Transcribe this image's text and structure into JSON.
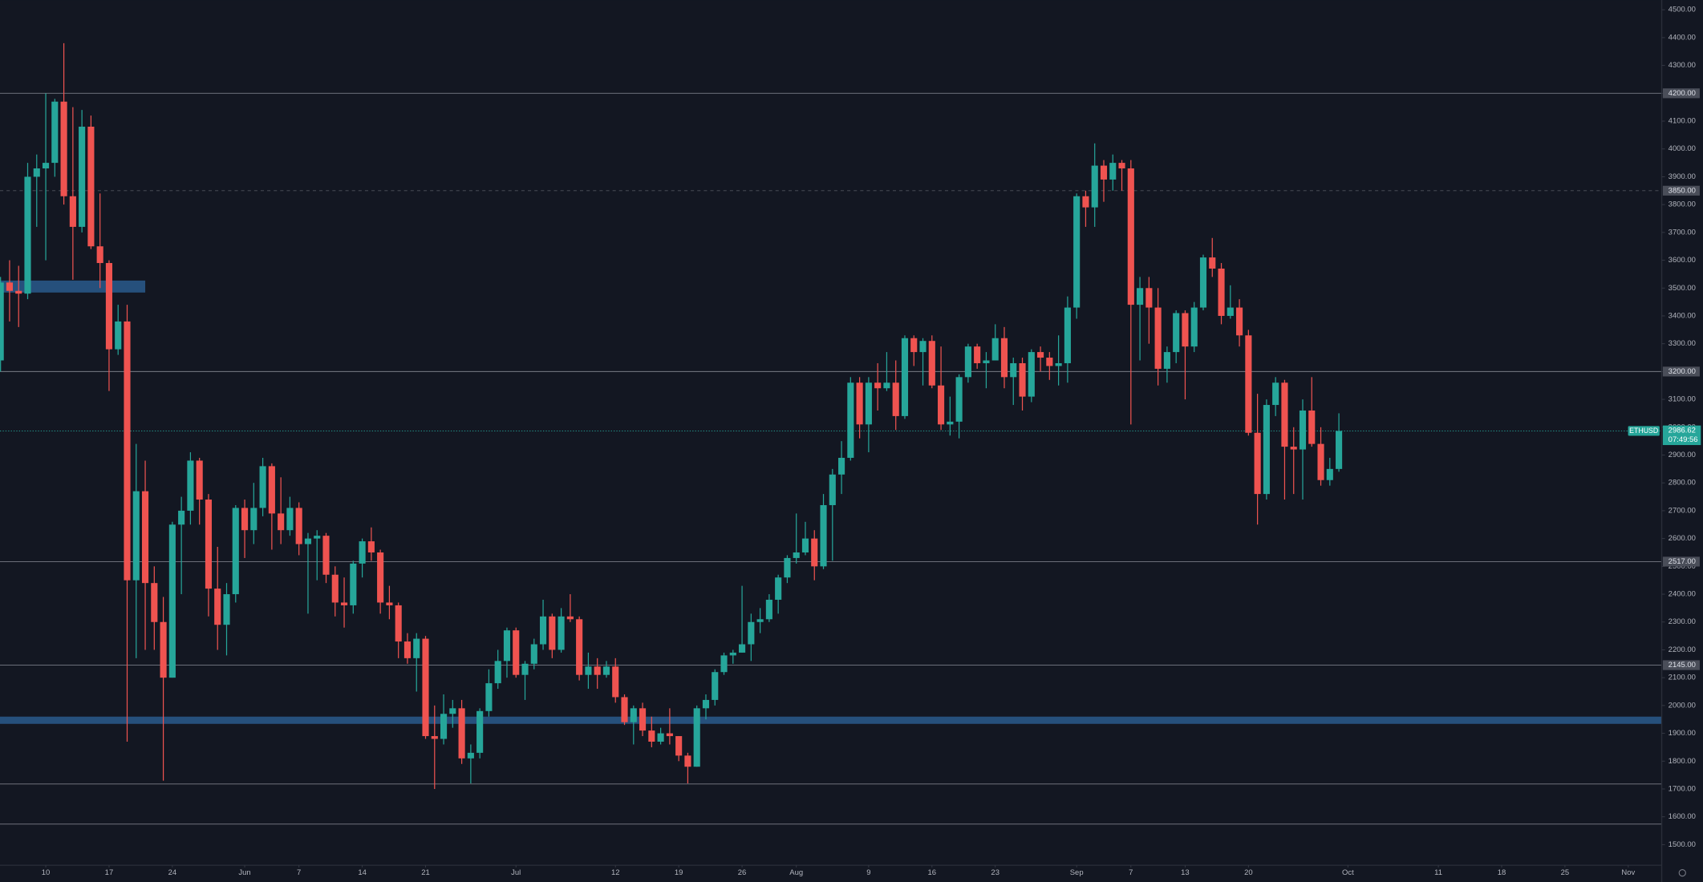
{
  "chart_data": {
    "type": "candlestick",
    "series_name": "ETHUSD",
    "countdown": "07:49:56",
    "up_color": "#26a69a",
    "down_color": "#ef5350",
    "x": [
      "May 5",
      "May 6",
      "May 7",
      "May 8",
      "May 9",
      "May 10",
      "May 11",
      "May 12",
      "May 13",
      "May 14",
      "May 15",
      "May 16",
      "May 17",
      "May 18",
      "May 19",
      "May 20",
      "May 21",
      "May 22",
      "May 23",
      "May 24",
      "May 25",
      "May 26",
      "May 27",
      "May 28",
      "May 29",
      "May 30",
      "May 31",
      "Jun 1",
      "Jun 2",
      "Jun 3",
      "Jun 4",
      "Jun 5",
      "Jun 6",
      "Jun 7",
      "Jun 8",
      "Jun 9",
      "Jun 10",
      "Jun 11",
      "Jun 12",
      "Jun 13",
      "Jun 14",
      "Jun 15",
      "Jun 16",
      "Jun 17",
      "Jun 18",
      "Jun 19",
      "Jun 20",
      "Jun 21",
      "Jun 22",
      "Jun 23",
      "Jun 24",
      "Jun 25",
      "Jun 26",
      "Jun 27",
      "Jun 28",
      "Jun 29",
      "Jun 30",
      "Jul 1",
      "Jul 2",
      "Jul 3",
      "Jul 4",
      "Jul 5",
      "Jul 6",
      "Jul 7",
      "Jul 8",
      "Jul 9",
      "Jul 10",
      "Jul 11",
      "Jul 12",
      "Jul 13",
      "Jul 14",
      "Jul 15",
      "Jul 16",
      "Jul 17",
      "Jul 18",
      "Jul 19",
      "Jul 20",
      "Jul 21",
      "Jul 22",
      "Jul 23",
      "Jul 24",
      "Jul 25",
      "Jul 26",
      "Jul 27",
      "Jul 28",
      "Jul 29",
      "Jul 30",
      "Jul 31",
      "Aug 1",
      "Aug 2",
      "Aug 3",
      "Aug 4",
      "Aug 5",
      "Aug 6",
      "Aug 7",
      "Aug 8",
      "Aug 9",
      "Aug 10",
      "Aug 11",
      "Aug 12",
      "Aug 13",
      "Aug 14",
      "Aug 15",
      "Aug 16",
      "Aug 17",
      "Aug 18",
      "Aug 19",
      "Aug 20",
      "Aug 21",
      "Aug 22",
      "Aug 23",
      "Aug 24",
      "Aug 25",
      "Aug 26",
      "Aug 27",
      "Aug 28",
      "Aug 29",
      "Aug 30",
      "Aug 31",
      "Sep 1",
      "Sep 2",
      "Sep 3",
      "Sep 4",
      "Sep 5",
      "Sep 6",
      "Sep 7",
      "Sep 8",
      "Sep 9",
      "Sep 10",
      "Sep 11",
      "Sep 12",
      "Sep 13",
      "Sep 14",
      "Sep 15",
      "Sep 16",
      "Sep 17",
      "Sep 18",
      "Sep 19",
      "Sep 20",
      "Sep 21",
      "Sep 22",
      "Sep 23",
      "Sep 24",
      "Sep 25",
      "Sep 26",
      "Sep 27",
      "Sep 28",
      "Sep 29",
      "Sep 30"
    ],
    "open": [
      3240,
      3520,
      3490,
      3480,
      3900,
      3930,
      3950,
      4170,
      3830,
      3720,
      4080,
      3650,
      3590,
      3280,
      3380,
      2450,
      2770,
      2440,
      2300,
      2100,
      2650,
      2700,
      2880,
      2740,
      2420,
      2290,
      2400,
      2710,
      2630,
      2710,
      2860,
      2690,
      2630,
      2710,
      2580,
      2600,
      2610,
      2470,
      2370,
      2360,
      2510,
      2590,
      2550,
      2370,
      2360,
      2230,
      2170,
      2240,
      1890,
      1880,
      1970,
      1990,
      1810,
      1830,
      1980,
      2080,
      2160,
      2270,
      2110,
      2150,
      2220,
      2320,
      2200,
      2320,
      2310,
      2110,
      2140,
      2110,
      2140,
      2030,
      1940,
      1990,
      1910,
      1870,
      1900,
      1890,
      1820,
      1780,
      1990,
      2020,
      2120,
      2180,
      2190,
      2220,
      2300,
      2310,
      2380,
      2460,
      2530,
      2550,
      2600,
      2500,
      2720,
      2830,
      2890,
      3160,
      3010,
      3160,
      3140,
      3160,
      3040,
      3320,
      3270,
      3310,
      3150,
      3010,
      3020,
      3180,
      3290,
      3230,
      3240,
      3320,
      3180,
      3230,
      3110,
      3270,
      3250,
      3220,
      3230,
      3430,
      3830,
      3790,
      3940,
      3890,
      3950,
      3930,
      3440,
      3500,
      3430,
      3210,
      3270,
      3410,
      3290,
      3430,
      3610,
      3570,
      3400,
      3430,
      3330,
      2980,
      2760,
      3080,
      3160,
      2930,
      2920,
      3060,
      2940,
      2810,
      2850
    ],
    "high": [
      3540,
      3600,
      3580,
      3950,
      3980,
      4200,
      4180,
      4380,
      4150,
      4140,
      4120,
      3840,
      3600,
      3440,
      3440,
      2940,
      2880,
      2500,
      2390,
      2660,
      2750,
      2910,
      2890,
      2760,
      2570,
      2440,
      2720,
      2740,
      2800,
      2890,
      2870,
      2820,
      2750,
      2730,
      2620,
      2630,
      2620,
      2500,
      2460,
      2520,
      2600,
      2640,
      2560,
      2430,
      2370,
      2260,
      2260,
      2250,
      2000,
      2040,
      2020,
      2020,
      1860,
      1990,
      2130,
      2200,
      2280,
      2280,
      2160,
      2240,
      2380,
      2330,
      2350,
      2400,
      2320,
      2190,
      2170,
      2160,
      2170,
      2040,
      2000,
      2010,
      1960,
      1920,
      1990,
      1890,
      1830,
      2000,
      2040,
      2130,
      2190,
      2200,
      2430,
      2330,
      2350,
      2400,
      2470,
      2540,
      2690,
      2660,
      2630,
      2760,
      2850,
      2950,
      3180,
      3180,
      3180,
      3230,
      3270,
      3240,
      3330,
      3330,
      3320,
      3330,
      3290,
      3110,
      3190,
      3300,
      3300,
      3270,
      3370,
      3360,
      3250,
      3250,
      3280,
      3290,
      3270,
      3330,
      3470,
      3840,
      3850,
      4020,
      3960,
      3980,
      3960,
      3960,
      3540,
      3540,
      3500,
      3290,
      3420,
      3420,
      3450,
      3620,
      3680,
      3590,
      3510,
      3460,
      3350,
      3120,
      3100,
      3180,
      3170,
      3000,
      3100,
      3180,
      3000,
      2890,
      3050
    ],
    "low": [
      3200,
      3380,
      3360,
      3460,
      3720,
      3600,
      3900,
      3800,
      3530,
      3700,
      3640,
      3500,
      3130,
      3260,
      1870,
      2170,
      2200,
      2200,
      1730,
      2100,
      2400,
      2650,
      2650,
      2320,
      2200,
      2180,
      2370,
      2530,
      2580,
      2680,
      2560,
      2580,
      2610,
      2540,
      2330,
      2450,
      2440,
      2320,
      2280,
      2330,
      2460,
      2520,
      2330,
      2310,
      2170,
      2150,
      2050,
      1880,
      1700,
      1860,
      1920,
      1790,
      1720,
      1810,
      1960,
      2060,
      2100,
      2100,
      2020,
      2130,
      2200,
      2170,
      2190,
      2300,
      2090,
      2060,
      2060,
      2100,
      2010,
      1930,
      1860,
      1890,
      1850,
      1860,
      1860,
      1800,
      1720,
      1780,
      1950,
      2000,
      2110,
      2150,
      2190,
      2160,
      2260,
      2300,
      2330,
      2440,
      2510,
      2540,
      2450,
      2490,
      2520,
      2760,
      2880,
      2960,
      2910,
      3060,
      3130,
      2990,
      3030,
      3220,
      3150,
      3140,
      2990,
      2970,
      2960,
      3160,
      3210,
      3140,
      3240,
      3140,
      3080,
      3060,
      3090,
      3200,
      3170,
      3150,
      3160,
      3390,
      3720,
      3720,
      3810,
      3850,
      3850,
      3010,
      3240,
      3300,
      3150,
      3160,
      3230,
      3100,
      3270,
      3420,
      3540,
      3370,
      3390,
      3290,
      2970,
      2650,
      2740,
      3040,
      2740,
      2760,
      2740,
      2930,
      2790,
      2790,
      2840
    ],
    "close": [
      3520,
      3490,
      3480,
      3900,
      3930,
      3950,
      4170,
      3830,
      3720,
      4080,
      3650,
      3590,
      3280,
      3380,
      2450,
      2770,
      2440,
      2300,
      2100,
      2650,
      2700,
      2880,
      2740,
      2420,
      2290,
      2400,
      2710,
      2630,
      2710,
      2860,
      2690,
      2630,
      2710,
      2580,
      2600,
      2610,
      2470,
      2370,
      2360,
      2510,
      2590,
      2550,
      2370,
      2360,
      2230,
      2170,
      2240,
      1890,
      1880,
      1970,
      1990,
      1810,
      1830,
      1980,
      2080,
      2160,
      2270,
      2110,
      2150,
      2220,
      2320,
      2200,
      2320,
      2310,
      2110,
      2140,
      2110,
      2140,
      2030,
      1940,
      1990,
      1910,
      1870,
      1900,
      1890,
      1820,
      1780,
      1990,
      2020,
      2120,
      2180,
      2190,
      2220,
      2300,
      2310,
      2380,
      2460,
      2530,
      2550,
      2600,
      2500,
      2720,
      2830,
      2890,
      3160,
      3010,
      3160,
      3140,
      3160,
      3040,
      3320,
      3270,
      3310,
      3150,
      3010,
      3020,
      3180,
      3290,
      3230,
      3240,
      3320,
      3180,
      3230,
      3110,
      3270,
      3250,
      3220,
      3230,
      3430,
      3830,
      3790,
      3940,
      3890,
      3950,
      3930,
      3440,
      3500,
      3430,
      3210,
      3270,
      3410,
      3290,
      3430,
      3610,
      3570,
      3400,
      3430,
      3330,
      2980,
      2760,
      3080,
      3160,
      2930,
      2920,
      3060,
      2940,
      2810,
      2850,
      2986.62
    ],
    "ylim": [
      1500,
      4500
    ],
    "yticks": [
      {
        "value": 1500,
        "label": "1500.00"
      },
      {
        "value": 1600,
        "label": "1600.00"
      },
      {
        "value": 1700,
        "label": "1700.00"
      },
      {
        "value": 1800,
        "label": "1800.00"
      },
      {
        "value": 1900,
        "label": "1900.00"
      },
      {
        "value": 2000,
        "label": "2000.00"
      },
      {
        "value": 2100,
        "label": "2100.00"
      },
      {
        "value": 2200,
        "label": "2200.00"
      },
      {
        "value": 2300,
        "label": "2300.00"
      },
      {
        "value": 2400,
        "label": "2400.00"
      },
      {
        "value": 2500,
        "label": "2500.00"
      },
      {
        "value": 2600,
        "label": "2600.00"
      },
      {
        "value": 2700,
        "label": "2700.00"
      },
      {
        "value": 2800,
        "label": "2800.00"
      },
      {
        "value": 2900,
        "label": "2900.00"
      },
      {
        "value": 3000,
        "label": "3000.00"
      },
      {
        "value": 3100,
        "label": "3100.00"
      },
      {
        "value": 3200,
        "label": "3200.00"
      },
      {
        "value": 3300,
        "label": "3300.00"
      },
      {
        "value": 3400,
        "label": "3400.00"
      },
      {
        "value": 3500,
        "label": "3500.00"
      },
      {
        "value": 3600,
        "label": "3600.00"
      },
      {
        "value": 3700,
        "label": "3700.00"
      },
      {
        "value": 3800,
        "label": "3800.00"
      },
      {
        "value": 3900,
        "label": "3900.00"
      },
      {
        "value": 4000,
        "label": "4000.00"
      },
      {
        "value": 4100,
        "label": "4100.00"
      },
      {
        "value": 4200,
        "label": "4200.00"
      },
      {
        "value": 4300,
        "label": "4300.00"
      },
      {
        "value": 4400,
        "label": "4400.00"
      },
      {
        "value": 4500,
        "label": "4500.00"
      }
    ],
    "xticks": [
      {
        "value": "May 10",
        "label": "10"
      },
      {
        "value": "May 17",
        "label": "17"
      },
      {
        "value": "May 24",
        "label": "24"
      },
      {
        "value": "Jun 1",
        "label": "Jun"
      },
      {
        "value": "Jun 7",
        "label": "7"
      },
      {
        "value": "Jun 14",
        "label": "14"
      },
      {
        "value": "Jun 21",
        "label": "21"
      },
      {
        "value": "Jul 1",
        "label": "Jul"
      },
      {
        "value": "Jul 12",
        "label": "12"
      },
      {
        "value": "Jul 19",
        "label": "19"
      },
      {
        "value": "Jul 26",
        "label": "26"
      },
      {
        "value": "Aug 1",
        "label": "Aug"
      },
      {
        "value": "Aug 9",
        "label": "9"
      },
      {
        "value": "Aug 16",
        "label": "16"
      },
      {
        "value": "Aug 23",
        "label": "23"
      },
      {
        "value": "Sep 1",
        "label": "Sep"
      },
      {
        "value": "Sep 7",
        "label": "7"
      },
      {
        "value": "Sep 13",
        "label": "13"
      },
      {
        "value": "Sep 20",
        "label": "20"
      },
      {
        "value": "Oct 1",
        "label": "Oct"
      },
      {
        "value": "Oct 11",
        "label": "11"
      },
      {
        "value": "Oct 18",
        "label": "18"
      },
      {
        "value": "Oct 25",
        "label": "25"
      },
      {
        "value": "Nov 1",
        "label": "Nov"
      }
    ],
    "levels": [
      {
        "value": 4200,
        "label": "4200.00",
        "dashed": false
      },
      {
        "value": 3850,
        "label": "3850.00",
        "dashed": true
      },
      {
        "value": 3200,
        "label": "3200.00",
        "dashed": false
      },
      {
        "value": 2517,
        "label": "2517.00",
        "dashed": false
      },
      {
        "value": 2145,
        "label": "2145.00",
        "dashed": false
      }
    ],
    "unlabeled_levels": [
      1718,
      1574
    ],
    "zones": [
      {
        "low": 3484,
        "high": 3527,
        "end": "May 21"
      },
      {
        "low": 1934,
        "high": 1960,
        "end": null
      }
    ]
  }
}
